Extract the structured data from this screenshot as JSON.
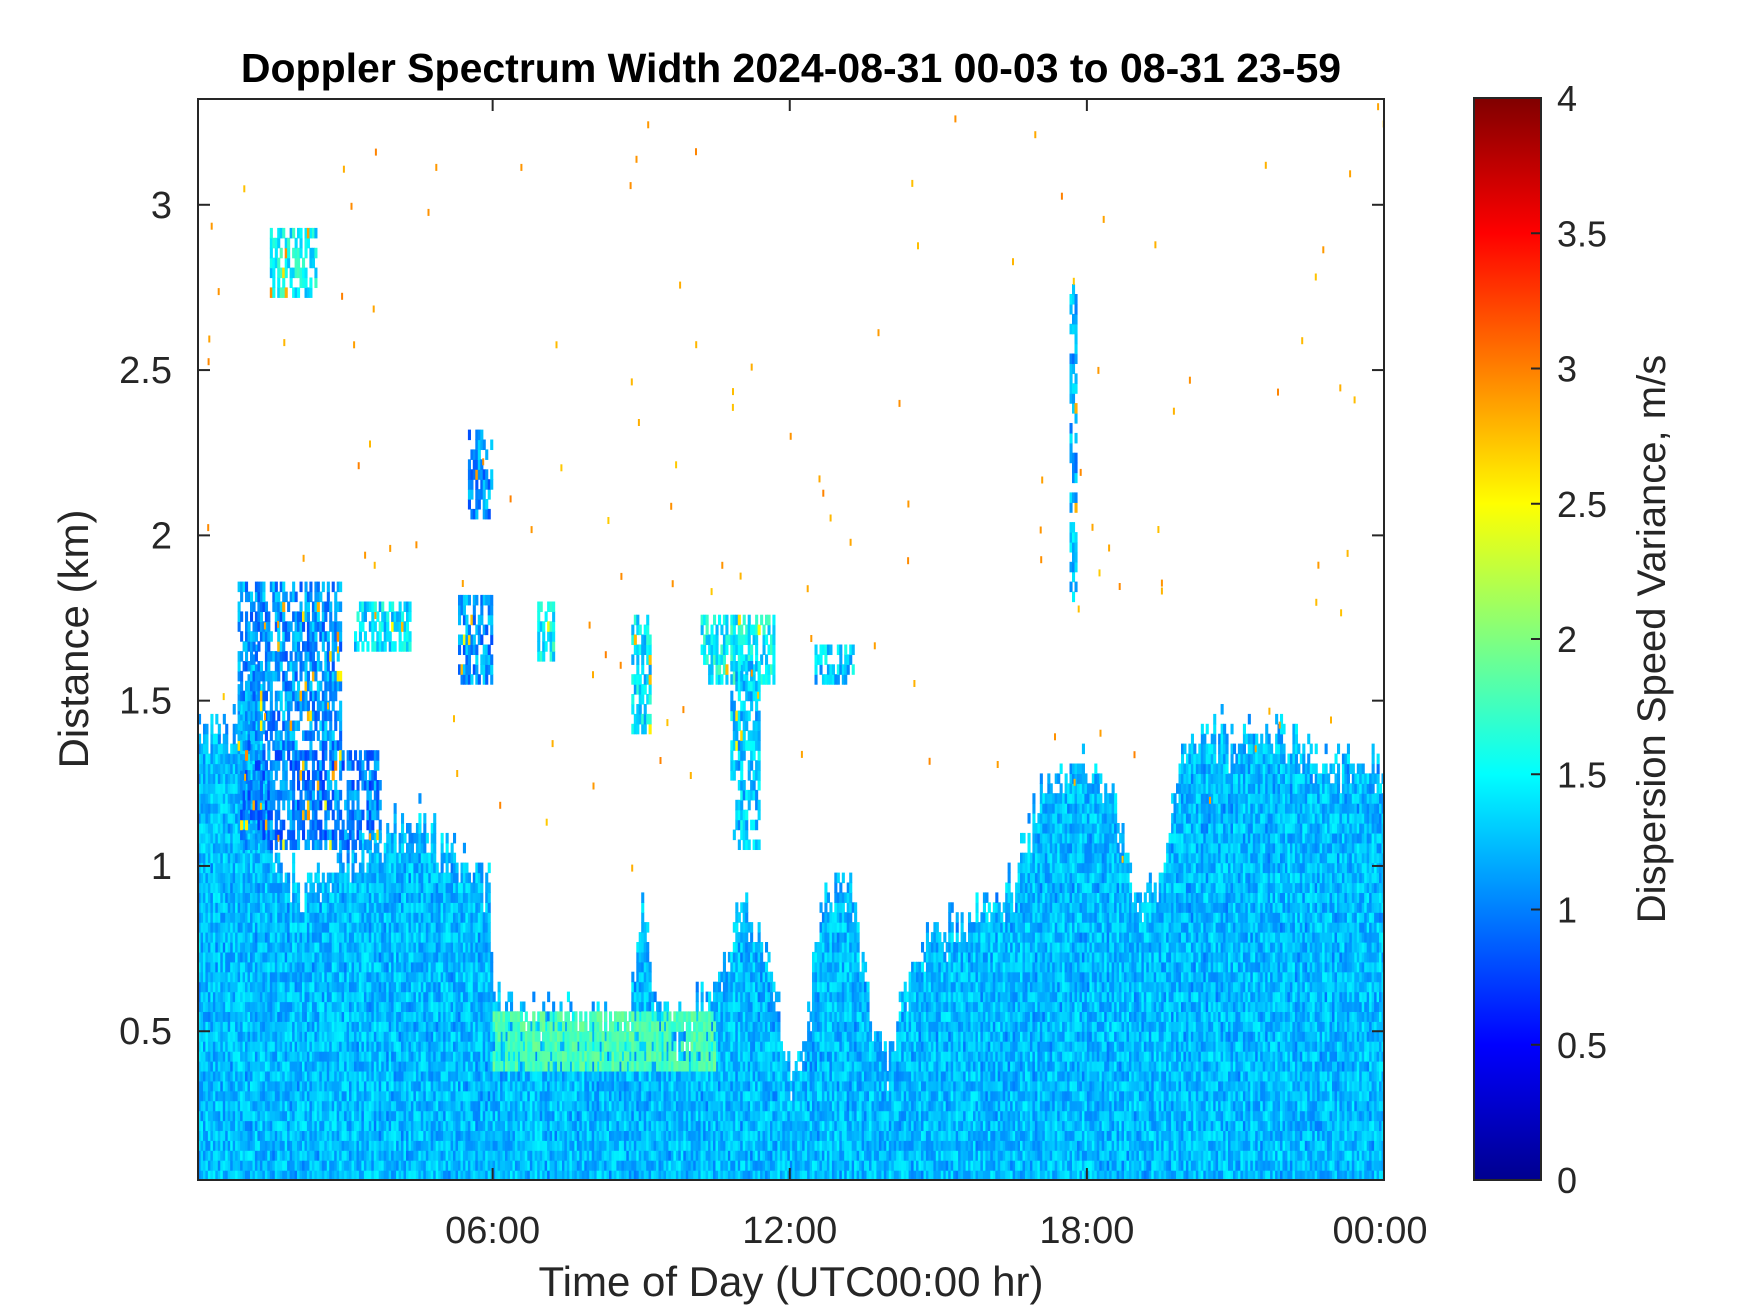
{
  "chart_data": {
    "type": "heatmap",
    "title": "Doppler Spectrum Width 2024-08-31 00-03 to 08-31 23-59",
    "xlabel": "Time of Day (UTC00:00 hr)",
    "ylabel": "Distance (km)",
    "colorbar_label": "Dispersion Speed Variance, m/s",
    "xlim_hours": [
      0.05,
      24
    ],
    "ylim_km": [
      0.05,
      3.32
    ],
    "x_ticks": [
      {
        "hours": 6,
        "label": "06:00"
      },
      {
        "hours": 12,
        "label": "12:00"
      },
      {
        "hours": 18,
        "label": "18:00"
      },
      {
        "hours": 24,
        "label": "00:00"
      }
    ],
    "y_ticks": [
      {
        "km": 0.5,
        "label": "0.5"
      },
      {
        "km": 1,
        "label": "1"
      },
      {
        "km": 1.5,
        "label": "1.5"
      },
      {
        "km": 2,
        "label": "2"
      },
      {
        "km": 2.5,
        "label": "2.5"
      },
      {
        "km": 3,
        "label": "3"
      }
    ],
    "colorbar": {
      "range": [
        0,
        4
      ],
      "colormap": "jet",
      "ticks": [
        {
          "value": 0,
          "label": "0"
        },
        {
          "value": 0.5,
          "label": "0.5"
        },
        {
          "value": 1,
          "label": "1"
        },
        {
          "value": 1.5,
          "label": "1.5"
        },
        {
          "value": 2,
          "label": "2"
        },
        {
          "value": 2.5,
          "label": "2.5"
        },
        {
          "value": 3,
          "label": "3"
        },
        {
          "value": 3.5,
          "label": "3.5"
        },
        {
          "value": 4,
          "label": "4"
        }
      ]
    },
    "grid": false,
    "signal_top_profile_km": [
      [
        0.05,
        1.42
      ],
      [
        0.7,
        1.4
      ],
      [
        0.9,
        1.55
      ],
      [
        1.2,
        1.65
      ],
      [
        1.5,
        1.1
      ],
      [
        2.0,
        0.95
      ],
      [
        2.8,
        1.0
      ],
      [
        3.5,
        1.08
      ],
      [
        4.2,
        1.12
      ],
      [
        4.6,
        1.15
      ],
      [
        5.0,
        1.05
      ],
      [
        5.6,
        1.0
      ],
      [
        5.9,
        0.95
      ],
      [
        6.0,
        0.58
      ],
      [
        6.5,
        0.55
      ],
      [
        7.0,
        0.55
      ],
      [
        7.5,
        0.54
      ],
      [
        8.0,
        0.53
      ],
      [
        8.7,
        0.5
      ],
      [
        9.0,
        0.85
      ],
      [
        9.3,
        0.6
      ],
      [
        9.6,
        0.5
      ],
      [
        10.0,
        0.55
      ],
      [
        10.5,
        0.65
      ],
      [
        11.0,
        0.9
      ],
      [
        11.5,
        0.75
      ],
      [
        12.0,
        0.38
      ],
      [
        12.3,
        0.5
      ],
      [
        12.7,
        0.95
      ],
      [
        13.2,
        0.95
      ],
      [
        13.6,
        0.55
      ],
      [
        14.0,
        0.4
      ],
      [
        14.5,
        0.75
      ],
      [
        15.0,
        0.8
      ],
      [
        15.5,
        0.85
      ],
      [
        16.0,
        0.88
      ],
      [
        16.5,
        0.95
      ],
      [
        17.0,
        1.2
      ],
      [
        17.5,
        1.3
      ],
      [
        18.0,
        1.3
      ],
      [
        18.5,
        1.2
      ],
      [
        19.0,
        0.9
      ],
      [
        19.5,
        1.0
      ],
      [
        20.0,
        1.4
      ],
      [
        20.5,
        1.42
      ],
      [
        21.0,
        1.38
      ],
      [
        21.5,
        1.45
      ],
      [
        22.0,
        1.38
      ],
      [
        22.5,
        1.33
      ],
      [
        23.0,
        1.3
      ],
      [
        23.5,
        1.3
      ],
      [
        24.0,
        1.3
      ]
    ],
    "cloud_patches": [
      {
        "t": [
          1.5,
          2.4
        ],
        "km": [
          2.72,
          2.9
        ],
        "value": 1.5
      },
      {
        "t": [
          0.85,
          2.9
        ],
        "km": [
          1.35,
          1.85
        ],
        "value": 1.1
      },
      {
        "t": [
          0.9,
          3.7
        ],
        "km": [
          1.05,
          1.35
        ],
        "value": 1.0
      },
      {
        "t": [
          3.2,
          4.3
        ],
        "km": [
          1.65,
          1.78
        ],
        "value": 1.4
      },
      {
        "t": [
          5.3,
          5.95
        ],
        "km": [
          1.55,
          1.8
        ],
        "value": 1.1
      },
      {
        "t": [
          5.5,
          5.95
        ],
        "km": [
          2.05,
          2.3
        ],
        "value": 1.1
      },
      {
        "t": [
          6.9,
          7.2
        ],
        "km": [
          1.62,
          1.78
        ],
        "value": 1.5
      },
      {
        "t": [
          8.8,
          9.2
        ],
        "km": [
          1.4,
          1.75
        ],
        "value": 1.4
      },
      {
        "t": [
          10.2,
          11.7
        ],
        "km": [
          1.55,
          1.75
        ],
        "value": 1.5
      },
      {
        "t": [
          10.8,
          11.4
        ],
        "km": [
          1.05,
          1.6
        ],
        "value": 1.3
      },
      {
        "t": [
          12.5,
          13.3
        ],
        "km": [
          1.55,
          1.65
        ],
        "value": 1.3
      },
      {
        "t": [
          17.65,
          17.8
        ],
        "km": [
          1.8,
          2.75
        ],
        "value": 1.2
      }
    ],
    "boundary_layer_band": {
      "t": [
        6.0,
        10.5
      ],
      "km": [
        0.38,
        0.55
      ],
      "value": 1.8
    }
  }
}
